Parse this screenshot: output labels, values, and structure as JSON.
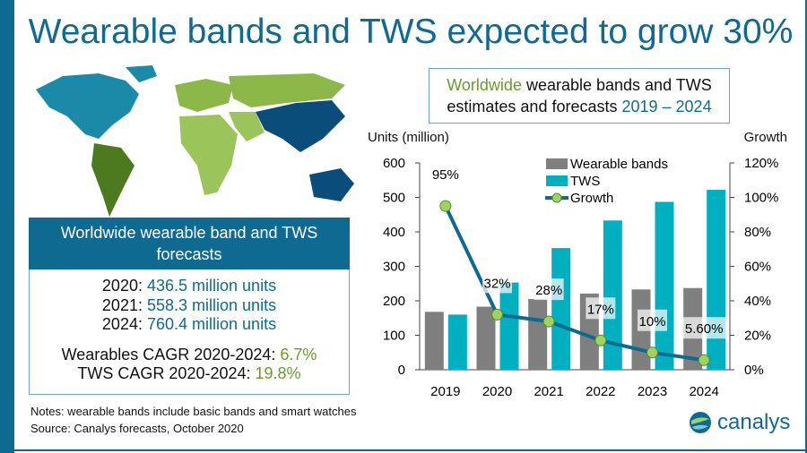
{
  "title": "Wearable bands and TWS expected to grow 30%",
  "subtitle": {
    "part1": "Worldwide",
    "part2": " wearable bands and TWS estimates and forecasts ",
    "part3": "2019 – 2024"
  },
  "forecast": {
    "heading": "Worldwide wearable band and TWS forecasts",
    "lines": [
      {
        "year": "2020",
        "value": "436.5 million units"
      },
      {
        "year": "2021",
        "value": "558.3 million units"
      },
      {
        "year": "2024",
        "value": "760.4 million units"
      }
    ],
    "cagr": [
      {
        "label": "Wearables CAGR 2020-2024",
        "value": "6.7%"
      },
      {
        "label": "TWS CAGR 2020-2024",
        "value": "19.8%"
      }
    ]
  },
  "notes": "Notes: wearable bands include basic bands and smart watches",
  "source": "Source: Canalys forecasts, October 2020",
  "logo": "canalys",
  "colors": {
    "brand": "#0f6a92",
    "green": "#6a9a2e",
    "wearable": "#7f7f7f",
    "tws": "#00b0c0",
    "growth_line": "#0f6a92",
    "growth_marker": "#9fd35f"
  },
  "chart_data": {
    "type": "bar",
    "categories": [
      "2019",
      "2020",
      "2021",
      "2022",
      "2023",
      "2024"
    ],
    "ylabel": "Units (million)",
    "y2label": "Growth",
    "ylim": [
      0,
      600
    ],
    "yticks": [
      "0",
      "100",
      "200",
      "300",
      "400",
      "500",
      "600"
    ],
    "y2lim": [
      0,
      120
    ],
    "y2ticks": [
      "0%",
      "20%",
      "40%",
      "60%",
      "80%",
      "100%",
      "120%"
    ],
    "legend": "top-center",
    "series": [
      {
        "name": "Wearable bands",
        "type": "bar",
        "values": [
          168,
          183,
          205,
          221,
          233,
          237
        ]
      },
      {
        "name": "TWS",
        "type": "bar",
        "values": [
          160,
          253,
          353,
          433,
          487,
          522
        ]
      },
      {
        "name": "Growth",
        "type": "line",
        "axis": "right",
        "values": [
          95,
          32,
          28,
          17,
          10,
          5.6
        ],
        "labels": [
          "95%",
          "32%",
          "28%",
          "17%",
          "10%",
          "5.60%"
        ]
      }
    ]
  }
}
